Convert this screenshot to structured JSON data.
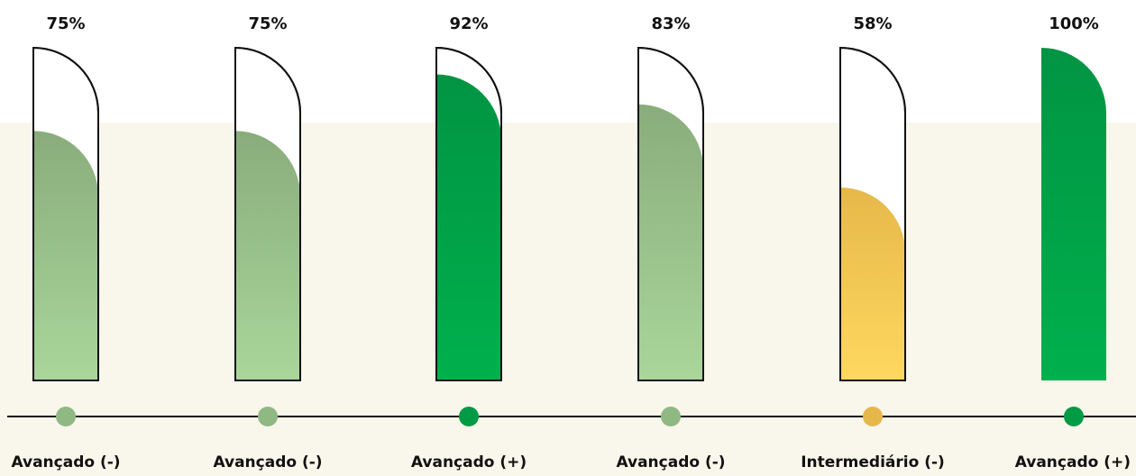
{
  "chart_data": {
    "type": "bar",
    "title": "",
    "xlabel": "",
    "ylabel": "",
    "ylim": [
      0,
      100
    ],
    "grid": false,
    "categories": [
      "Avançado (-)",
      "Avançado (-)",
      "Avançado (+)",
      "Avançado (-)",
      "Intermediário (-)",
      "Avançado (+)"
    ],
    "values": [
      75,
      75,
      92,
      83,
      58,
      100
    ],
    "data_labels": [
      "75%",
      "75%",
      "92%",
      "83%",
      "58%",
      "100%"
    ],
    "colors": [
      "#8fb882",
      "#8fb882",
      "#019a45",
      "#8fb882",
      "#e6b84a",
      "#019a45"
    ]
  },
  "palette": {
    "light_green_top": "#8aac7c",
    "light_green_bottom": "#a9d69a",
    "dark_green_top": "#019443",
    "dark_green_bottom": "#00b04c",
    "yellow_top": "#e6b84a",
    "yellow_bottom": "#fed85f",
    "background_band": "#f9f6eb"
  }
}
